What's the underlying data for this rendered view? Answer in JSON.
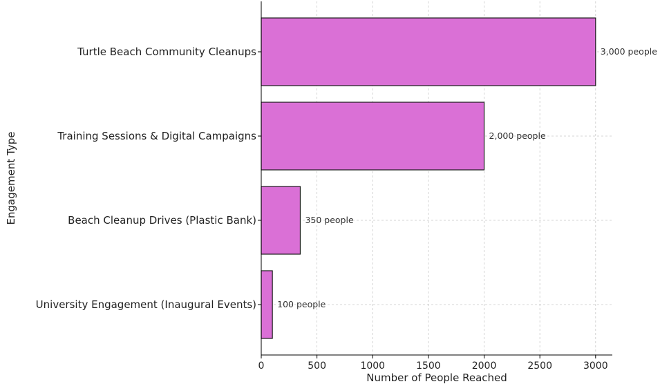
{
  "chart_data": {
    "type": "bar",
    "orientation": "horizontal",
    "title": "",
    "xlabel": "Number of People Reached",
    "ylabel": "Engagement Type",
    "categories": [
      "Turtle Beach Community Cleanups",
      "Training Sessions & Digital Campaigns",
      "Beach Cleanup Drives (Plastic Bank)",
      "University Engagement (Inaugural Events)"
    ],
    "values": [
      3000,
      2000,
      350,
      100
    ],
    "data_labels": [
      "3,000 people",
      "2,000 people",
      "350 people",
      "100 people"
    ],
    "xlim": [
      0,
      3150
    ],
    "xticks": [
      0,
      500,
      1000,
      1500,
      2000,
      2500,
      3000
    ],
    "xtick_labels": [
      "0",
      "500",
      "1000",
      "1500",
      "2000",
      "2500",
      "3000"
    ],
    "grid": true,
    "bar_color": "#da70d6",
    "edge_color": "#1a1a1a"
  }
}
